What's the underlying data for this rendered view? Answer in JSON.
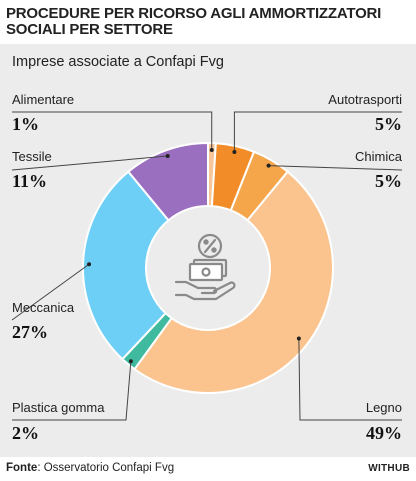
{
  "header": {
    "title": "PROCEDURE PER RICORSO AGLI AMMORTIZZATORI SOCIALI PER SETTORE"
  },
  "footer": {
    "source_label": "Fonte",
    "source_text": ": Osservatorio Confapi Fvg",
    "brand": "WITHUB"
  },
  "center_icon": "hand-money-percent-icon",
  "colors": {
    "Alimentare": "#f7c79a",
    "Autotrasporti": "#f28c28",
    "Chimica": "#f5a54a",
    "Legno": "#fbc48e",
    "Plastica gomma": "#3fba9f",
    "Meccanica": "#6ecff6",
    "Tessile": "#9b6fc0"
  },
  "chart_data": {
    "type": "pie",
    "subtitle": "Imprese associate a Confapi Fvg",
    "slices": [
      {
        "label": "Alimentare",
        "value": 1,
        "display": "1%"
      },
      {
        "label": "Autotrasporti",
        "value": 5,
        "display": "5%"
      },
      {
        "label": "Chimica",
        "value": 5,
        "display": "5%"
      },
      {
        "label": "Legno",
        "value": 49,
        "display": "49%"
      },
      {
        "label": "Plastica gomma",
        "value": 2,
        "display": "2%"
      },
      {
        "label": "Meccanica",
        "value": 27,
        "display": "27%"
      },
      {
        "label": "Tessile",
        "value": 11,
        "display": "11%"
      }
    ]
  }
}
